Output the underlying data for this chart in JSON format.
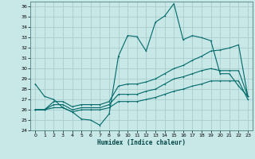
{
  "title": "",
  "xlabel": "Humidex (Indice chaleur)",
  "ylabel": "",
  "bg_color": "#c8e8e8",
  "line_color": "#006868",
  "grid_color": "#a8cccc",
  "xlim": [
    -0.5,
    23.5
  ],
  "ylim": [
    24,
    36.5
  ],
  "yticks": [
    24,
    25,
    26,
    27,
    28,
    29,
    30,
    31,
    32,
    33,
    34,
    35,
    36
  ],
  "xticks": [
    0,
    1,
    2,
    3,
    4,
    5,
    6,
    7,
    8,
    9,
    10,
    11,
    12,
    13,
    14,
    15,
    16,
    17,
    18,
    19,
    20,
    21,
    22,
    23
  ],
  "lines": [
    {
      "x": [
        0,
        1,
        2,
        3,
        4,
        5,
        6,
        7,
        8,
        9,
        10,
        11,
        12,
        13,
        14,
        15,
        16,
        17,
        18,
        19,
        20,
        21,
        22,
        23
      ],
      "y": [
        28.5,
        27.3,
        27.0,
        26.2,
        25.8,
        25.1,
        25.0,
        24.5,
        25.6,
        31.2,
        33.2,
        33.1,
        31.7,
        34.5,
        35.1,
        36.3,
        32.8,
        33.2,
        33.0,
        32.7,
        29.5,
        29.5,
        28.3,
        27.3
      ]
    },
    {
      "x": [
        0,
        1,
        2,
        3,
        4,
        5,
        6,
        7,
        8,
        9,
        10,
        11,
        12,
        13,
        14,
        15,
        16,
        17,
        18,
        19,
        20,
        21,
        22,
        23
      ],
      "y": [
        26.0,
        26.0,
        26.8,
        26.8,
        26.3,
        26.5,
        26.5,
        26.5,
        26.8,
        28.3,
        28.5,
        28.5,
        28.7,
        29.0,
        29.5,
        30.0,
        30.3,
        30.8,
        31.2,
        31.7,
        31.8,
        32.0,
        32.3,
        27.3
      ]
    },
    {
      "x": [
        0,
        1,
        2,
        3,
        4,
        5,
        6,
        7,
        8,
        9,
        10,
        11,
        12,
        13,
        14,
        15,
        16,
        17,
        18,
        19,
        20,
        21,
        22,
        23
      ],
      "y": [
        26.0,
        26.0,
        26.5,
        26.5,
        26.0,
        26.2,
        26.2,
        26.2,
        26.5,
        27.5,
        27.5,
        27.5,
        27.8,
        28.0,
        28.5,
        29.0,
        29.2,
        29.5,
        29.8,
        30.0,
        29.8,
        29.8,
        29.8,
        27.3
      ]
    },
    {
      "x": [
        0,
        1,
        2,
        3,
        4,
        5,
        6,
        7,
        8,
        9,
        10,
        11,
        12,
        13,
        14,
        15,
        16,
        17,
        18,
        19,
        20,
        21,
        22,
        23
      ],
      "y": [
        26.0,
        26.0,
        26.2,
        26.2,
        25.8,
        26.0,
        26.0,
        26.0,
        26.2,
        26.8,
        26.8,
        26.8,
        27.0,
        27.2,
        27.5,
        27.8,
        28.0,
        28.3,
        28.5,
        28.8,
        28.8,
        28.8,
        28.8,
        27.0
      ]
    }
  ]
}
